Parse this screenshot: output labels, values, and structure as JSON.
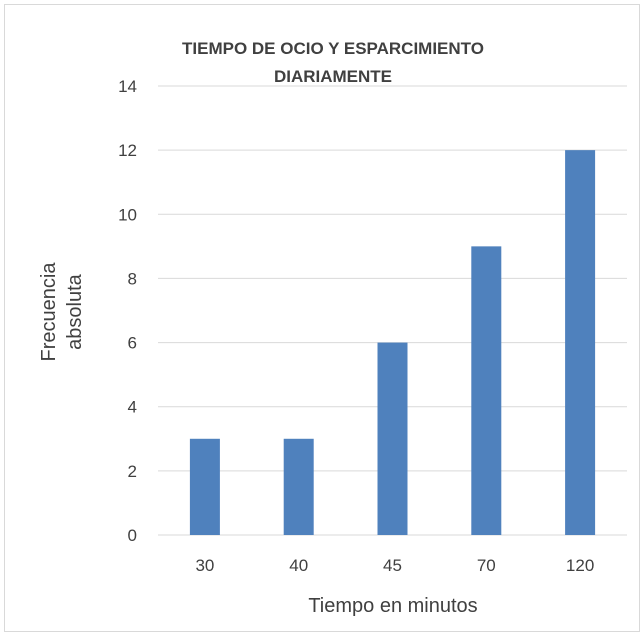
{
  "chart_data": {
    "type": "bar",
    "title_lines": [
      "TIEMPO DE OCIO Y ESPARCIMIENTO",
      "DIARIAMENTE"
    ],
    "categories": [
      "30",
      "40",
      "45",
      "70",
      "120"
    ],
    "values": [
      3,
      3,
      6,
      9,
      12
    ],
    "xlabel": "Tiempo en minutos",
    "ylabel_lines": [
      "Frecuencia",
      "absoluta"
    ],
    "ylim": [
      0,
      14
    ],
    "yticks": [
      "0",
      "2",
      "4",
      "6",
      "8",
      "10",
      "12",
      "14"
    ],
    "grid": true,
    "legend": "none",
    "bar_color": "#4f81bd",
    "grid_color": "#d9d9d9",
    "border_color": "#d9d9d9"
  }
}
